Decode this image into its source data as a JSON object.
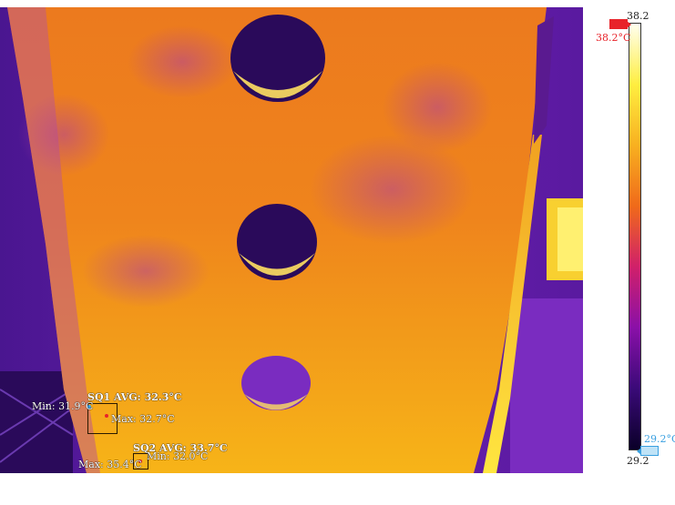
{
  "thermal_image": {
    "sq1": {
      "title": "SQ1 AVG: 32.3°C",
      "min": "Min: 31.9°C",
      "max": "Max: 32.7°C"
    },
    "sq2": {
      "title": "SQ2 AVG: 33.7°C",
      "min": "Min: 32.0°C",
      "max": "Max: 35.4°C"
    }
  },
  "scale": {
    "max_value": "38.2",
    "min_value": "29.2",
    "upper_marker": "38.2°C",
    "lower_marker": "29.2°C",
    "upper_color": "#e8232a",
    "lower_color": "#3aa0e0",
    "gradient": [
      "#0a0028",
      "#3a0a78",
      "#8a10a8",
      "#d0206a",
      "#f06a1a",
      "#f8b020",
      "#ffee40",
      "#fffff0"
    ]
  }
}
